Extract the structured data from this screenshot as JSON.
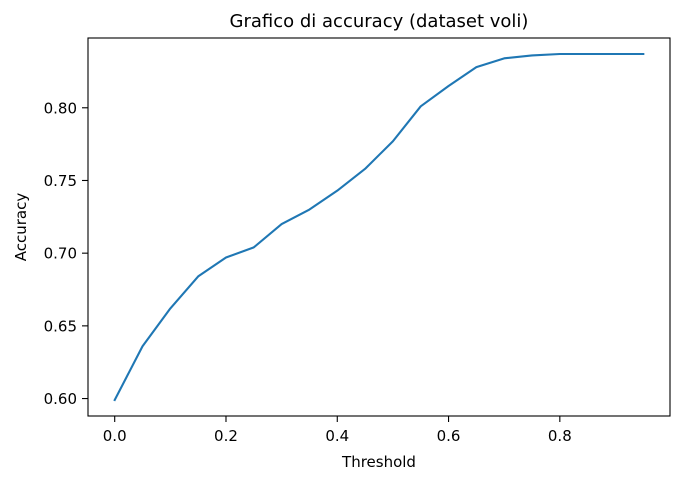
{
  "chart_data": {
    "type": "line",
    "title": "Grafico di accuracy (dataset voli)",
    "xlabel": "Threshold",
    "ylabel": "Accuracy",
    "xlim": [
      -0.048,
      0.998
    ],
    "ylim": [
      0.588,
      0.848
    ],
    "xticks": [
      0.0,
      0.2,
      0.4,
      0.6,
      0.8
    ],
    "xtick_labels": [
      "0.0",
      "0.2",
      "0.4",
      "0.6",
      "0.8"
    ],
    "yticks": [
      0.6,
      0.65,
      0.7,
      0.75,
      0.8
    ],
    "ytick_labels": [
      "0.60",
      "0.65",
      "0.70",
      "0.75",
      "0.80"
    ],
    "grid": false,
    "series": [
      {
        "color": "#1f77b4",
        "x": [
          0.0,
          0.05,
          0.1,
          0.15,
          0.2,
          0.25,
          0.3,
          0.35,
          0.4,
          0.45,
          0.5,
          0.55,
          0.6,
          0.65,
          0.7,
          0.75,
          0.8,
          0.85,
          0.9,
          0.95
        ],
        "y": [
          0.599,
          0.636,
          0.662,
          0.684,
          0.697,
          0.704,
          0.72,
          0.73,
          0.743,
          0.758,
          0.777,
          0.801,
          0.815,
          0.828,
          0.834,
          0.836,
          0.837,
          0.837,
          0.837,
          0.837
        ]
      }
    ]
  }
}
